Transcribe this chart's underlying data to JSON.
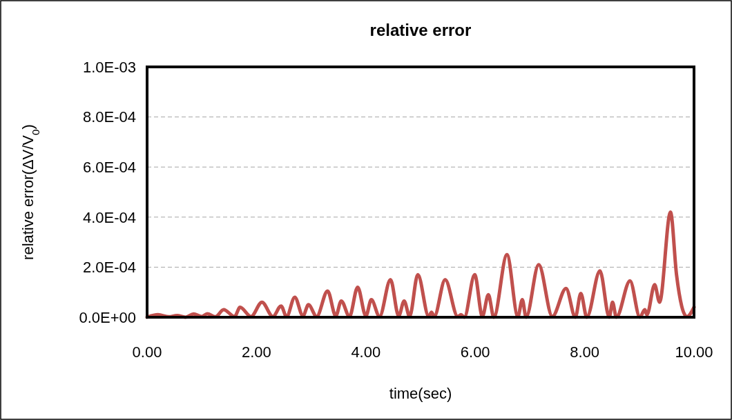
{
  "chart_data": {
    "type": "line",
    "title": "relative error",
    "xlabel": "time(sec)",
    "ylabel": "relative error(ΔV/V$_{0}$)",
    "x": [
      0,
      0.2,
      0.4,
      0.55,
      0.7,
      0.85,
      1.0,
      1.1,
      1.25,
      1.4,
      1.6,
      1.7,
      1.9,
      2.1,
      2.3,
      2.45,
      2.55,
      2.7,
      2.85,
      2.95,
      3.1,
      3.3,
      3.45,
      3.55,
      3.7,
      3.85,
      4.0,
      4.1,
      4.25,
      4.45,
      4.6,
      4.7,
      4.8,
      4.95,
      5.15,
      5.2,
      5.25,
      5.45,
      5.68,
      5.74,
      5.8,
      5.99,
      6.13,
      6.24,
      6.34,
      6.58,
      6.78,
      6.86,
      6.93,
      7.16,
      7.41,
      7.66,
      7.83,
      7.93,
      8.04,
      8.28,
      8.45,
      8.51,
      8.58,
      8.83,
      9.01,
      9.1,
      9.14,
      9.28,
      9.37,
      9.57,
      9.68,
      9.87,
      10.0
    ],
    "series": [
      {
        "color": "#c0504d",
        "values": [
          0,
          1e-05,
          2e-06,
          7e-06,
          0,
          1.3e-05,
          3e-06,
          1.4e-05,
          2e-06,
          3e-05,
          3e-06,
          4e-05,
          3e-06,
          6e-05,
          3e-06,
          4.5e-05,
          2e-06,
          8e-05,
          5e-06,
          5e-05,
          3e-06,
          0.000105,
          5e-06,
          6.5e-05,
          3e-06,
          0.00012,
          5e-06,
          7e-05,
          3e-06,
          0.00015,
          5e-06,
          6.5e-05,
          3e-06,
          0.00017,
          3e-06,
          2e-05,
          3e-06,
          0.00015,
          3e-06,
          1e-05,
          0,
          0.00017,
          3e-06,
          9e-05,
          0,
          0.00025,
          3e-06,
          7e-05,
          0,
          0.00021,
          3e-06,
          0.000115,
          0,
          9.5e-05,
          0,
          0.000185,
          0,
          6e-05,
          0,
          0.000145,
          0,
          3e-05,
          1e-05,
          0.00013,
          6e-05,
          0.00042,
          0.00017,
          2e-06,
          4e-05
        ]
      }
    ],
    "xlim": [
      0,
      10
    ],
    "xticks": [
      {
        "value": 0,
        "label": "0.00"
      },
      {
        "value": 2,
        "label": "2.00"
      },
      {
        "value": 4,
        "label": "4.00"
      },
      {
        "value": 6,
        "label": "6.00"
      },
      {
        "value": 8,
        "label": "8.00"
      },
      {
        "value": 10,
        "label": "10.00"
      }
    ],
    "ylim": [
      0,
      0.001
    ],
    "yticks": [
      {
        "value": 0,
        "label": "0.0E+00"
      },
      {
        "value": 0.0002,
        "label": "2.0E-04"
      },
      {
        "value": 0.0004,
        "label": "4.0E-04"
      },
      {
        "value": 0.0006,
        "label": "6.0E-04"
      },
      {
        "value": 0.0008,
        "label": "8.0E-04"
      },
      {
        "value": 0.001,
        "label": "1.0E-03"
      }
    ],
    "grid": "y",
    "line_style": "solid",
    "marker": "none"
  }
}
